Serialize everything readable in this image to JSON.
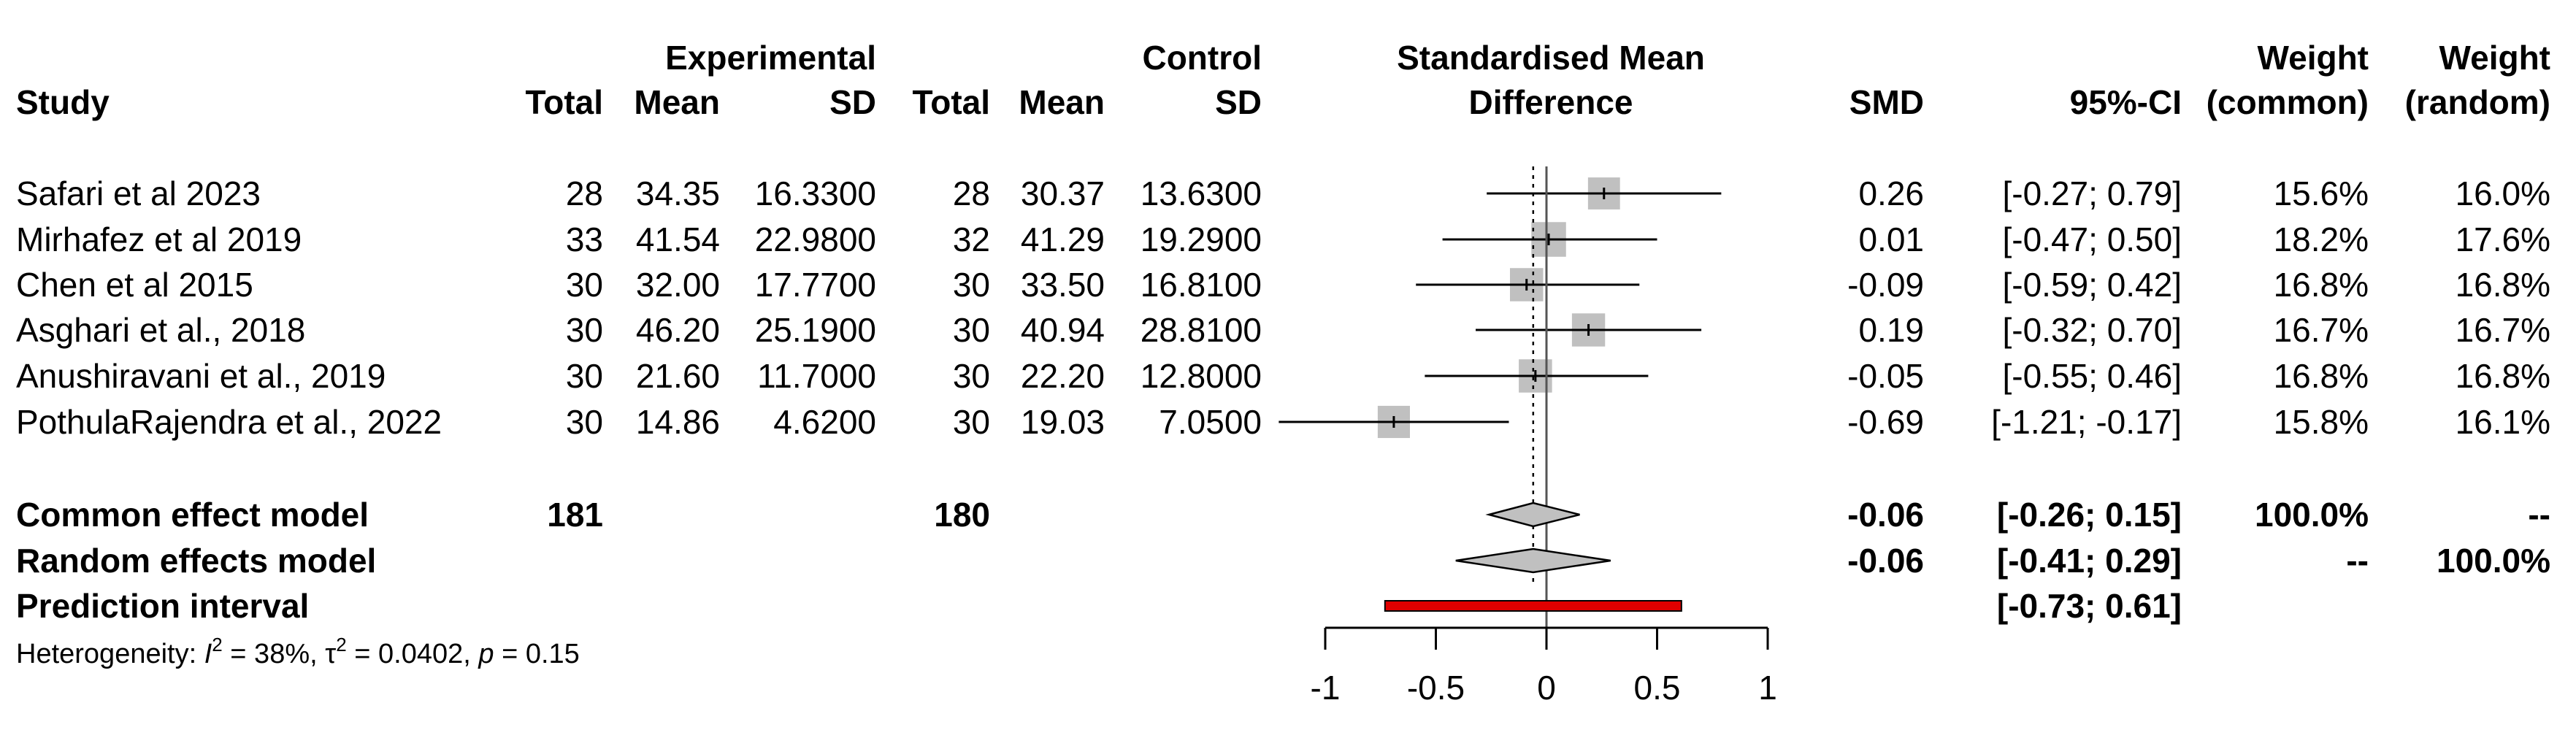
{
  "chart_data": {
    "type": "forest",
    "title": "Standardised Mean Difference",
    "headers": {
      "study": "Study",
      "experimental": "Experimental",
      "control": "Control",
      "total": "Total",
      "mean": "Mean",
      "sd": "SD",
      "effect_line1": "Standardised Mean",
      "effect_line2": "Difference",
      "smd": "SMD",
      "ci": "95%-CI",
      "weight": "Weight",
      "weight_common": "(common)",
      "weight_random": "(random)"
    },
    "studies": [
      {
        "name": "Safari et al 2023",
        "exp_total": "28",
        "exp_mean": "34.35",
        "exp_sd": "16.3300",
        "ctl_total": "28",
        "ctl_mean": "30.37",
        "ctl_sd": "13.6300",
        "smd_text": "0.26",
        "ci_text": "[-0.27;  0.79]",
        "w_common": "15.6%",
        "w_random": "16.0%",
        "smd": 0.26,
        "lower": -0.27,
        "upper": 0.79,
        "weight": 15.6
      },
      {
        "name": "Mirhafez et al 2019",
        "exp_total": "33",
        "exp_mean": "41.54",
        "exp_sd": "22.9800",
        "ctl_total": "32",
        "ctl_mean": "41.29",
        "ctl_sd": "19.2900",
        "smd_text": "0.01",
        "ci_text": "[-0.47;  0.50]",
        "w_common": "18.2%",
        "w_random": "17.6%",
        "smd": 0.01,
        "lower": -0.47,
        "upper": 0.5,
        "weight": 18.2
      },
      {
        "name": "Chen et al 2015",
        "exp_total": "30",
        "exp_mean": "32.00",
        "exp_sd": "17.7700",
        "ctl_total": "30",
        "ctl_mean": "33.50",
        "ctl_sd": "16.8100",
        "smd_text": "-0.09",
        "ci_text": "[-0.59;  0.42]",
        "w_common": "16.8%",
        "w_random": "16.8%",
        "smd": -0.09,
        "lower": -0.59,
        "upper": 0.42,
        "weight": 16.8
      },
      {
        "name": "Asghari et al., 2018",
        "exp_total": "30",
        "exp_mean": "46.20",
        "exp_sd": "25.1900",
        "ctl_total": "30",
        "ctl_mean": "40.94",
        "ctl_sd": "28.8100",
        "smd_text": "0.19",
        "ci_text": "[-0.32;  0.70]",
        "w_common": "16.7%",
        "w_random": "16.7%",
        "smd": 0.19,
        "lower": -0.32,
        "upper": 0.7,
        "weight": 16.7
      },
      {
        "name": "Anushiravani et al., 2019",
        "exp_total": "30",
        "exp_mean": "21.60",
        "exp_sd": "11.7000",
        "ctl_total": "30",
        "ctl_mean": "22.20",
        "ctl_sd": "12.8000",
        "smd_text": "-0.05",
        "ci_text": "[-0.55;  0.46]",
        "w_common": "16.8%",
        "w_random": "16.8%",
        "smd": -0.05,
        "lower": -0.55,
        "upper": 0.46,
        "weight": 16.8
      },
      {
        "name": "PothulaRajendra et al., 2022",
        "exp_total": "30",
        "exp_mean": "14.86",
        "exp_sd": "4.6200",
        "ctl_total": "30",
        "ctl_mean": "19.03",
        "ctl_sd": "7.0500",
        "smd_text": "-0.69",
        "ci_text": "[-1.21; -0.17]",
        "w_common": "15.8%",
        "w_random": "16.1%",
        "smd": -0.69,
        "lower": -1.21,
        "upper": -0.17,
        "weight": 15.8
      }
    ],
    "common": {
      "label": "Common effect model",
      "exp_total": "181",
      "ctl_total": "180",
      "smd_text": "-0.06",
      "ci_text": "[-0.26;  0.15]",
      "w_common": "100.0%",
      "w_random": "--",
      "smd": -0.06,
      "lower": -0.26,
      "upper": 0.15
    },
    "random": {
      "label": "Random effects model",
      "smd_text": "-0.06",
      "ci_text": "[-0.41;  0.29]",
      "w_common": "--",
      "w_random": "100.0%",
      "smd": -0.06,
      "lower": -0.41,
      "upper": 0.29
    },
    "prediction": {
      "label": "Prediction interval",
      "ci_text": "[-0.73;  0.61]",
      "lower": -0.73,
      "upper": 0.61
    },
    "heterogeneity": {
      "prefix": "Heterogeneity: ",
      "i2_symbol": "I",
      "i2_value": " = 38%, ",
      "tau_symbol": "τ",
      "tau_value": " = 0.0402, ",
      "p_symbol": "p",
      "p_value": " = 0.15"
    },
    "x_ticks": [
      -1,
      -0.5,
      0,
      0.5,
      1
    ],
    "x_tick_labels": [
      "-1",
      "-0.5",
      "0",
      "0.5",
      "1"
    ],
    "xlim": [
      -1,
      1
    ],
    "colors": {
      "square": "#c0c0c0",
      "prediction": "#e00000",
      "diamond": "#c0c0c0",
      "line": "#000000"
    }
  }
}
